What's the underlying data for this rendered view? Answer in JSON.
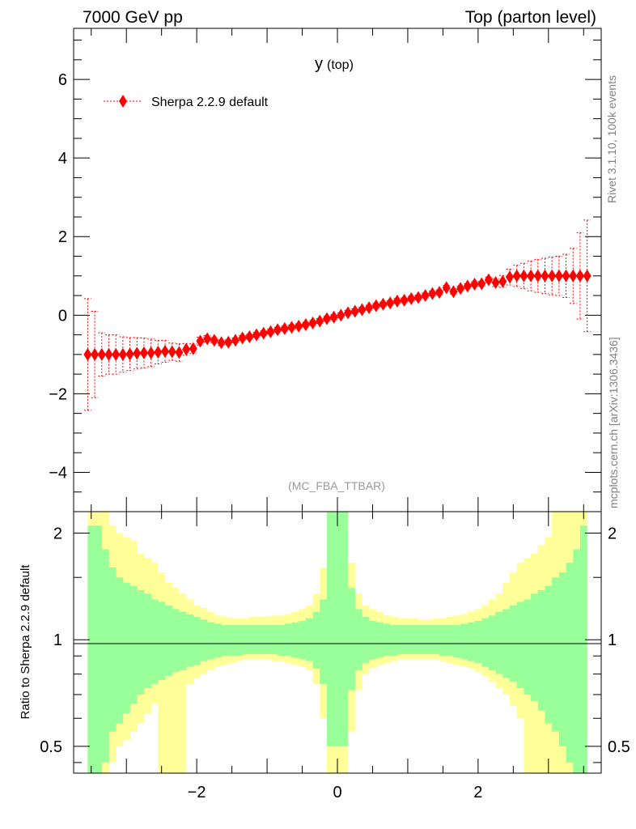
{
  "header": {
    "left": "7000 GeV pp",
    "right": "Top (parton level)"
  },
  "side_labels": {
    "rivet": "Rivet 3.1.10,  100k events",
    "mcplots": "mcplots.cern.ch [arXiv:1306.3436]"
  },
  "chart_data": [
    {
      "type": "scatter",
      "title": "y (top)",
      "title_main": "y",
      "title_sub": "(top)",
      "watermark": "(MC_FBA_TTBAR)",
      "xlim": [
        -3.75,
        3.75
      ],
      "ylim": [
        -5.0,
        7.3
      ],
      "y_ticks": [
        -4,
        -2,
        0,
        2,
        4,
        6
      ],
      "y_tick_labels": [
        "−4",
        "−2",
        "0",
        "2",
        "4",
        "6"
      ],
      "legend_position": "top-left",
      "series": [
        {
          "name": "Sherpa 2.2.9 default",
          "color": "#ff0000",
          "marker": "diamond",
          "x": [
            -3.55,
            -3.45,
            -3.35,
            -3.25,
            -3.15,
            -3.05,
            -2.95,
            -2.85,
            -2.75,
            -2.65,
            -2.55,
            -2.45,
            -2.35,
            -2.25,
            -2.15,
            -2.05,
            -1.95,
            -1.85,
            -1.75,
            -1.65,
            -1.55,
            -1.45,
            -1.35,
            -1.25,
            -1.15,
            -1.05,
            -0.95,
            -0.85,
            -0.75,
            -0.65,
            -0.55,
            -0.45,
            -0.35,
            -0.25,
            -0.15,
            -0.05,
            0.05,
            0.15,
            0.25,
            0.35,
            0.45,
            0.55,
            0.65,
            0.75,
            0.85,
            0.95,
            1.05,
            1.15,
            1.25,
            1.35,
            1.45,
            1.55,
            1.65,
            1.75,
            1.85,
            1.95,
            2.05,
            2.15,
            2.25,
            2.35,
            2.45,
            2.55,
            2.65,
            2.75,
            2.85,
            2.95,
            3.05,
            3.15,
            3.25,
            3.35,
            3.45,
            3.55
          ],
          "y": [
            -1.0,
            -1.0,
            -1.0,
            -1.0,
            -1.0,
            -1.0,
            -0.99,
            -0.97,
            -0.96,
            -0.96,
            -0.94,
            -0.92,
            -0.93,
            -0.95,
            -0.87,
            -0.85,
            -0.66,
            -0.6,
            -0.64,
            -0.7,
            -0.69,
            -0.64,
            -0.58,
            -0.55,
            -0.5,
            -0.46,
            -0.42,
            -0.37,
            -0.34,
            -0.31,
            -0.28,
            -0.24,
            -0.2,
            -0.15,
            -0.09,
            -0.05,
            0.0,
            0.06,
            0.1,
            0.14,
            0.19,
            0.24,
            0.28,
            0.31,
            0.36,
            0.38,
            0.42,
            0.45,
            0.5,
            0.55,
            0.58,
            0.7,
            0.6,
            0.68,
            0.74,
            0.79,
            0.8,
            0.9,
            0.83,
            0.86,
            0.97,
            1.0,
            1.0,
            1.0,
            1.0,
            1.0,
            1.0,
            1.0,
            1.0,
            1.0,
            1.0,
            1.0
          ],
          "err": [
            1.42,
            1.1,
            0.55,
            0.5,
            0.5,
            0.45,
            0.42,
            0.4,
            0.38,
            0.35,
            0.3,
            0.28,
            0.22,
            0.22,
            0.15,
            0.12,
            0.1,
            0.08,
            0.07,
            0.07,
            0.06,
            0.06,
            0.06,
            0.06,
            0.06,
            0.06,
            0.06,
            0.06,
            0.06,
            0.06,
            0.06,
            0.06,
            0.06,
            0.06,
            0.06,
            0.06,
            0.06,
            0.06,
            0.06,
            0.06,
            0.06,
            0.06,
            0.06,
            0.06,
            0.06,
            0.06,
            0.06,
            0.06,
            0.06,
            0.06,
            0.06,
            0.06,
            0.06,
            0.06,
            0.06,
            0.06,
            0.06,
            0.07,
            0.1,
            0.15,
            0.2,
            0.27,
            0.32,
            0.38,
            0.42,
            0.45,
            0.48,
            0.5,
            0.55,
            0.7,
            1.1,
            1.42
          ]
        }
      ]
    },
    {
      "type": "area",
      "ylabel": "Ratio to Sherpa 2.2.9 default",
      "ylim": [
        0.42,
        2.3
      ],
      "log_scale_y": true,
      "y_ticks": [
        0.5,
        1,
        2
      ],
      "y_tick_labels": [
        "0.5",
        "1",
        "2"
      ],
      "x_ticks": [
        -2,
        0,
        2
      ],
      "x_tick_labels": [
        "−2",
        "0",
        "2"
      ],
      "reference_line": 1,
      "bands": [
        {
          "name": "yellow",
          "color": "#ffff99",
          "bins_left": [
            -3.55,
            -3.45,
            -3.35,
            -3.25,
            -3.15,
            -3.05,
            -2.95,
            -2.85,
            -2.75,
            -2.65,
            -2.55,
            -2.45,
            -2.35,
            -2.25,
            -2.15,
            -2.05,
            -1.95,
            -1.85,
            -1.75,
            -1.65,
            -1.55,
            -1.45,
            -1.35,
            -1.25,
            -1.15,
            -1.05,
            -0.95,
            -0.85,
            -0.75,
            -0.65,
            -0.55,
            -0.45,
            -0.35,
            -0.25,
            -0.15,
            -0.05,
            0.05,
            0.15,
            0.25,
            0.35,
            0.45,
            0.55,
            0.65,
            0.75,
            0.85,
            0.95,
            1.05,
            1.15,
            1.25,
            1.35,
            1.45,
            1.55,
            1.65,
            1.75,
            1.85,
            1.95,
            2.05,
            2.15,
            2.25,
            2.35,
            2.45,
            2.55,
            2.65,
            2.75,
            2.85,
            2.95,
            3.05,
            3.15,
            3.25,
            3.35,
            3.45
          ],
          "width": 0.1,
          "upper": [
            2.35,
            2.35,
            2.35,
            2.1,
            2.0,
            1.95,
            1.9,
            1.75,
            1.7,
            1.65,
            1.55,
            1.45,
            1.4,
            1.35,
            1.3,
            1.25,
            1.23,
            1.2,
            1.17,
            1.16,
            1.15,
            1.15,
            1.15,
            1.16,
            1.16,
            1.16,
            1.17,
            1.17,
            1.18,
            1.2,
            1.22,
            1.25,
            1.35,
            1.6,
            2.35,
            2.35,
            2.35,
            1.65,
            1.35,
            1.25,
            1.22,
            1.2,
            1.17,
            1.16,
            1.15,
            1.15,
            1.15,
            1.14,
            1.14,
            1.15,
            1.15,
            1.16,
            1.17,
            1.18,
            1.2,
            1.22,
            1.25,
            1.3,
            1.35,
            1.45,
            1.55,
            1.65,
            1.7,
            1.75,
            1.85,
            1.95,
            2.35,
            2.35,
            2.35,
            2.35,
            2.35
          ],
          "lower": [
            0.3,
            0.3,
            0.3,
            0.45,
            0.5,
            0.52,
            0.55,
            0.58,
            0.62,
            0.66,
            0.3,
            0.3,
            0.3,
            0.3,
            0.75,
            0.78,
            0.8,
            0.82,
            0.84,
            0.85,
            0.86,
            0.87,
            0.88,
            0.88,
            0.88,
            0.88,
            0.87,
            0.87,
            0.86,
            0.85,
            0.84,
            0.82,
            0.75,
            0.6,
            0.3,
            0.3,
            0.3,
            0.55,
            0.72,
            0.8,
            0.83,
            0.85,
            0.86,
            0.87,
            0.88,
            0.88,
            0.88,
            0.88,
            0.88,
            0.88,
            0.87,
            0.86,
            0.85,
            0.84,
            0.83,
            0.81,
            0.79,
            0.76,
            0.73,
            0.7,
            0.65,
            0.6,
            0.3,
            0.3,
            0.3,
            0.3,
            0.3,
            0.3,
            0.3,
            0.3,
            0.3
          ]
        },
        {
          "name": "green",
          "color": "#99ff99",
          "bins_left": [
            -3.55,
            -3.45,
            -3.35,
            -3.25,
            -3.15,
            -3.05,
            -2.95,
            -2.85,
            -2.75,
            -2.65,
            -2.55,
            -2.45,
            -2.35,
            -2.25,
            -2.15,
            -2.05,
            -1.95,
            -1.85,
            -1.75,
            -1.65,
            -1.55,
            -1.45,
            -1.35,
            -1.25,
            -1.15,
            -1.05,
            -0.95,
            -0.85,
            -0.75,
            -0.65,
            -0.55,
            -0.45,
            -0.35,
            -0.25,
            -0.15,
            -0.05,
            0.05,
            0.15,
            0.25,
            0.35,
            0.45,
            0.55,
            0.65,
            0.75,
            0.85,
            0.95,
            1.05,
            1.15,
            1.25,
            1.35,
            1.45,
            1.55,
            1.65,
            1.75,
            1.85,
            1.95,
            2.05,
            2.15,
            2.25,
            2.35,
            2.45,
            2.55,
            2.65,
            2.75,
            2.85,
            2.95,
            3.05,
            3.15,
            3.25,
            3.35,
            3.45
          ],
          "width": 0.1,
          "upper": [
            2.1,
            2.1,
            1.8,
            1.6,
            1.5,
            1.45,
            1.42,
            1.38,
            1.35,
            1.3,
            1.28,
            1.25,
            1.22,
            1.2,
            1.18,
            1.16,
            1.14,
            1.12,
            1.11,
            1.1,
            1.1,
            1.1,
            1.1,
            1.1,
            1.1,
            1.1,
            1.1,
            1.1,
            1.11,
            1.12,
            1.13,
            1.15,
            1.2,
            1.3,
            2.35,
            2.35,
            2.35,
            1.4,
            1.22,
            1.16,
            1.13,
            1.12,
            1.11,
            1.1,
            1.1,
            1.1,
            1.1,
            1.1,
            1.1,
            1.1,
            1.1,
            1.1,
            1.1,
            1.11,
            1.12,
            1.13,
            1.15,
            1.17,
            1.2,
            1.22,
            1.25,
            1.28,
            1.3,
            1.35,
            1.38,
            1.42,
            1.5,
            1.55,
            1.65,
            1.8,
            2.1
          ],
          "lower": [
            0.3,
            0.3,
            0.45,
            0.55,
            0.58,
            0.62,
            0.66,
            0.7,
            0.73,
            0.75,
            0.77,
            0.79,
            0.81,
            0.82,
            0.84,
            0.85,
            0.87,
            0.88,
            0.89,
            0.9,
            0.9,
            0.9,
            0.91,
            0.91,
            0.91,
            0.91,
            0.91,
            0.9,
            0.9,
            0.89,
            0.88,
            0.87,
            0.83,
            0.75,
            0.5,
            0.5,
            0.5,
            0.72,
            0.82,
            0.86,
            0.88,
            0.89,
            0.9,
            0.9,
            0.91,
            0.91,
            0.91,
            0.91,
            0.91,
            0.91,
            0.9,
            0.9,
            0.89,
            0.88,
            0.87,
            0.86,
            0.84,
            0.82,
            0.8,
            0.78,
            0.76,
            0.73,
            0.7,
            0.67,
            0.63,
            0.58,
            0.55,
            0.5,
            0.45,
            0.35,
            0.3
          ]
        }
      ]
    }
  ]
}
